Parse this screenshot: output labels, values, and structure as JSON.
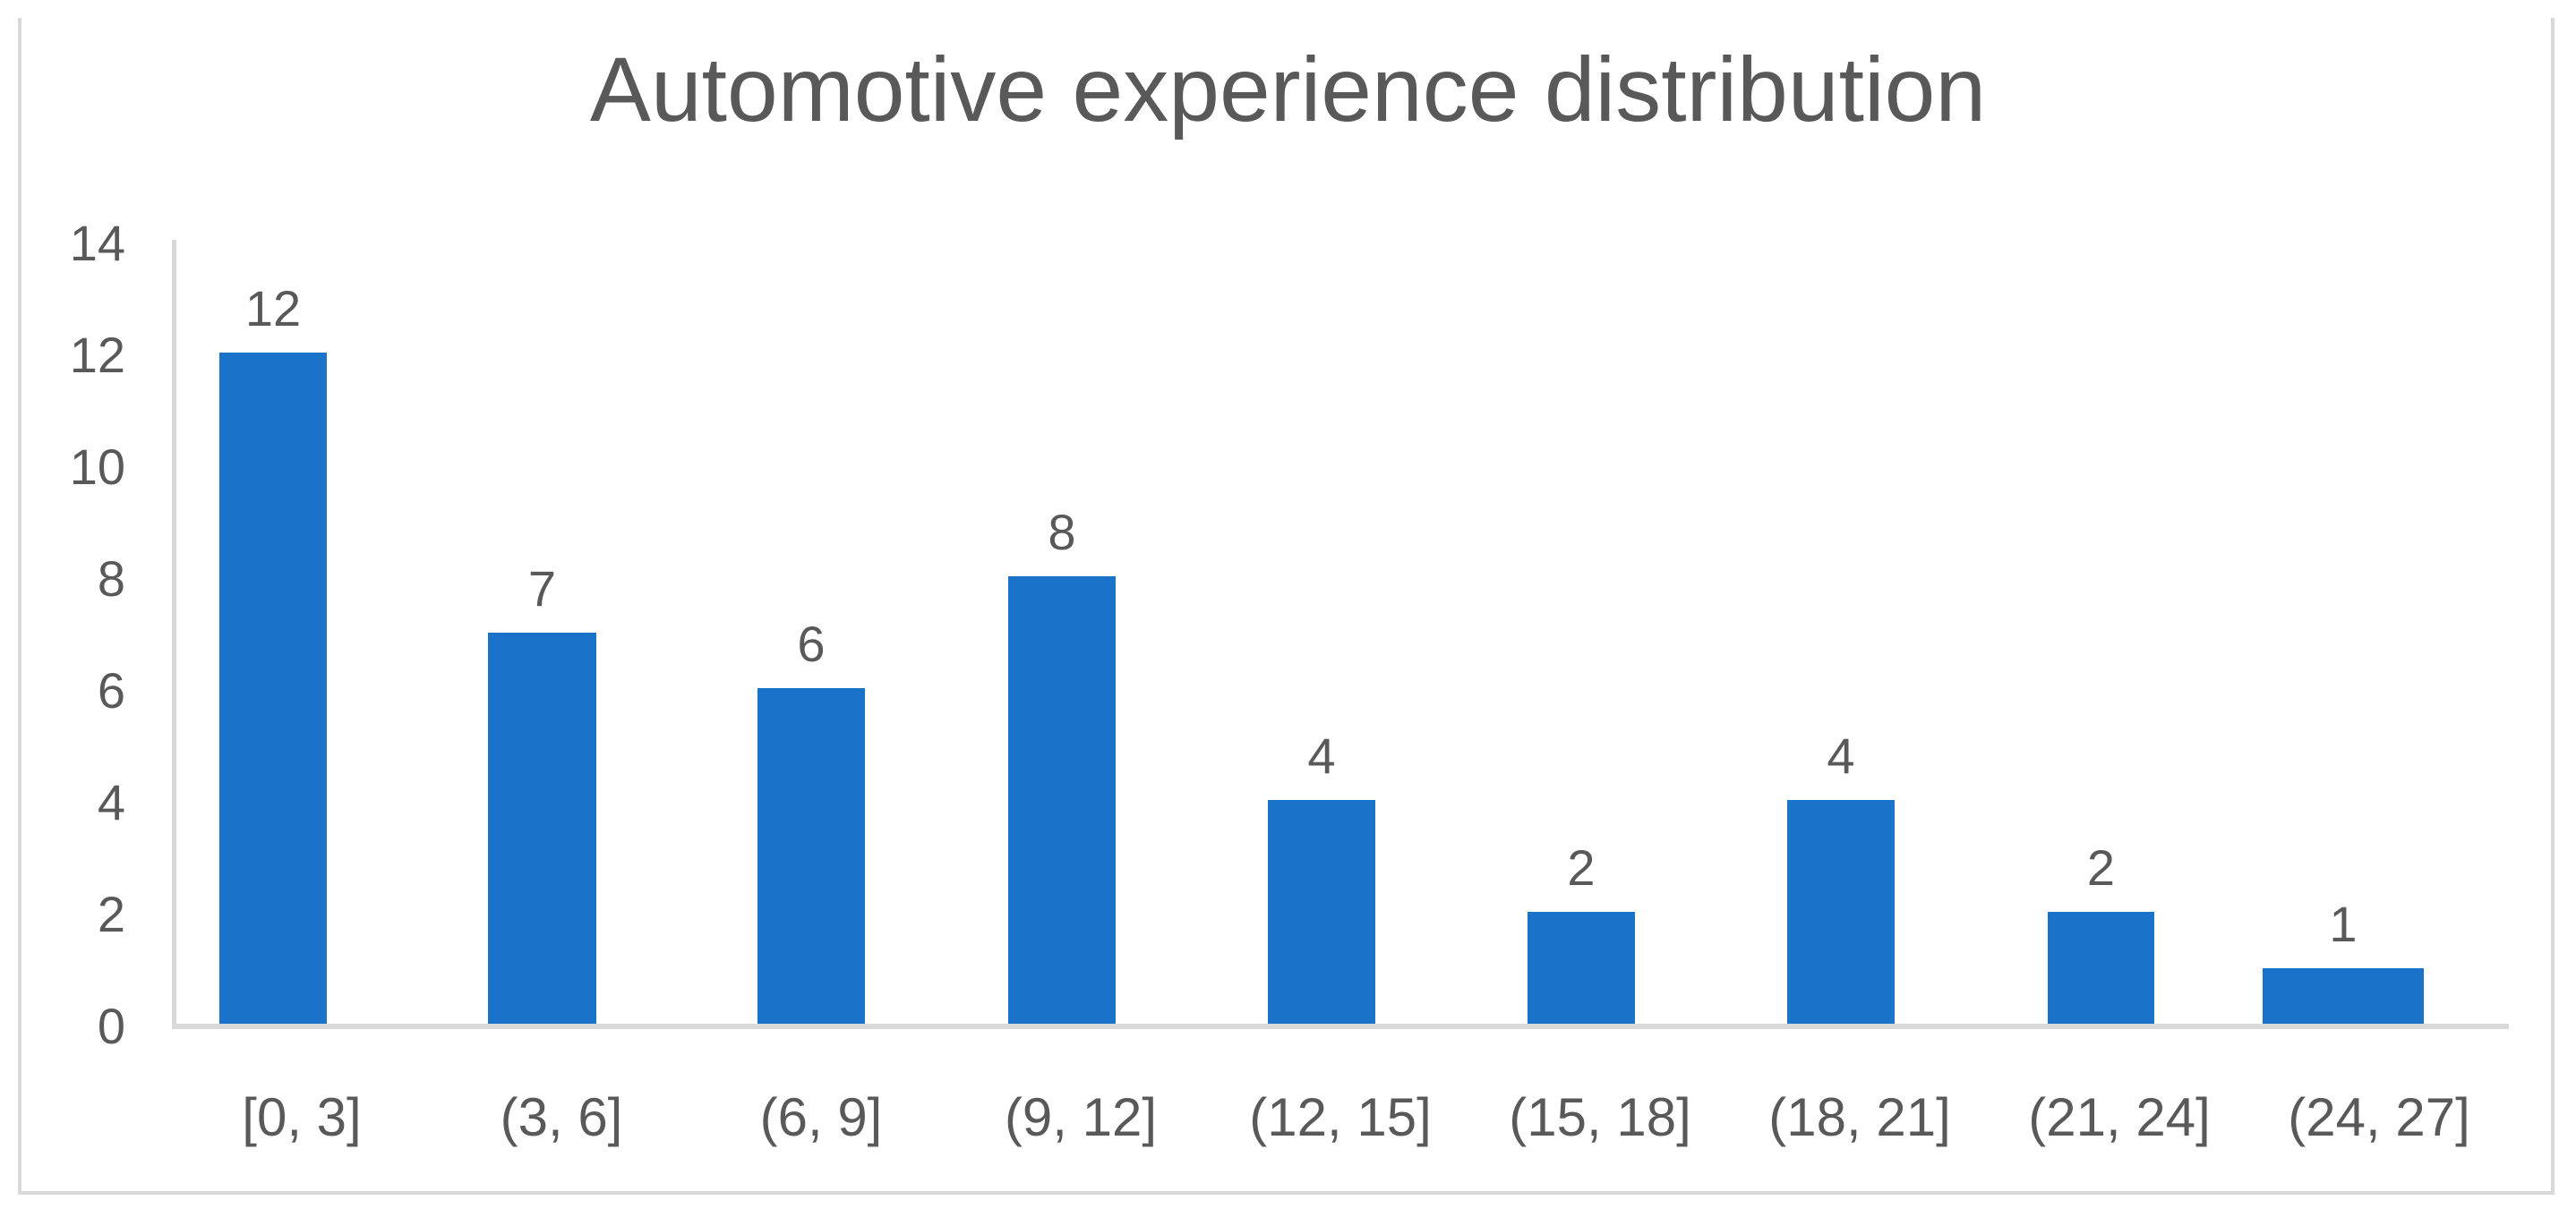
{
  "title": "Automotive experience distribution",
  "chart_data": {
    "type": "bar",
    "title": "Automotive experience distribution",
    "categories": [
      "[0, 3]",
      "(3, 6]",
      "(6, 9]",
      "(9, 12]",
      "(12, 15]",
      "(15, 18]",
      "(18, 21]",
      "(21, 24]",
      "(24, 27]"
    ],
    "values": [
      12,
      7,
      6,
      8,
      4,
      2,
      4,
      2,
      1
    ],
    "data_labels": [
      "12",
      "7",
      "6",
      "8",
      "4",
      "2",
      "4",
      "2",
      "1"
    ],
    "y_ticks": [
      0,
      2,
      4,
      6,
      8,
      10,
      12,
      14
    ],
    "ylim": [
      0,
      14
    ],
    "xlabel": "",
    "ylabel": "",
    "grid": false,
    "legend_position": "none",
    "bar_color": "#1A73C8",
    "axis_color": "#D9D9D9",
    "text_color": "#595959"
  }
}
